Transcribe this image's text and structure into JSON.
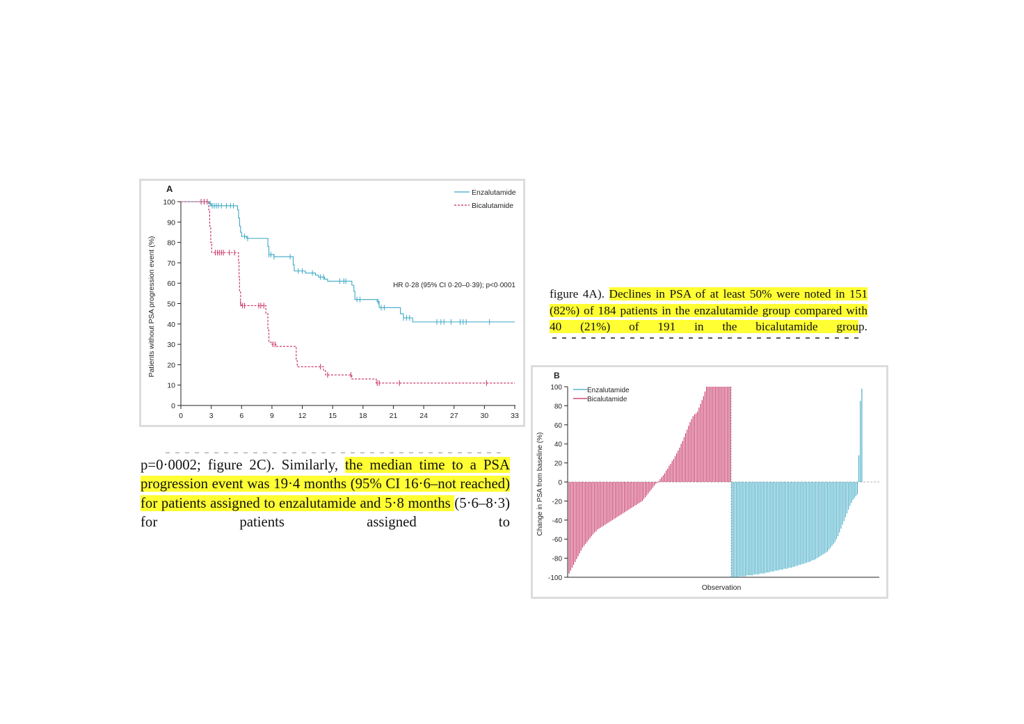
{
  "figure_a": {
    "panel_label": "A",
    "annotation": "HR 0·28 (95% CI 0·20–0·39); p<0·0001",
    "chart_data": {
      "type": "line",
      "title": "",
      "ylabel": "Patients without PSA progression event (%)",
      "xlabel": "",
      "xlim": [
        0,
        33
      ],
      "ylim": [
        0,
        100
      ],
      "xticks": [
        0,
        3,
        6,
        9,
        12,
        15,
        18,
        21,
        24,
        27,
        30,
        33
      ],
      "yticks": [
        0,
        10,
        20,
        30,
        40,
        50,
        60,
        70,
        80,
        90,
        100
      ],
      "legend_position": "top-right",
      "series": [
        {
          "name": "Enzalutamide",
          "color": "#3aa8c4",
          "line_style": "solid",
          "steps": [
            [
              0,
              100
            ],
            [
              2.6,
              100
            ],
            [
              2.8,
              99
            ],
            [
              3.0,
              98
            ],
            [
              5.4,
              98
            ],
            [
              5.6,
              96
            ],
            [
              5.7,
              92
            ],
            [
              5.8,
              88
            ],
            [
              5.9,
              85
            ],
            [
              6.0,
              83
            ],
            [
              6.5,
              82
            ],
            [
              8.4,
              82
            ],
            [
              8.6,
              78
            ],
            [
              8.7,
              74
            ],
            [
              9.2,
              73
            ],
            [
              11.0,
              73
            ],
            [
              11.1,
              69
            ],
            [
              11.2,
              66
            ],
            [
              12.3,
              65
            ],
            [
              13.2,
              65
            ],
            [
              13.3,
              64
            ],
            [
              13.6,
              63
            ],
            [
              14.2,
              62
            ],
            [
              14.5,
              61
            ],
            [
              16.8,
              61
            ],
            [
              16.9,
              59
            ],
            [
              17.1,
              56
            ],
            [
              17.2,
              52
            ],
            [
              19.2,
              52
            ],
            [
              19.4,
              51
            ],
            [
              19.6,
              48
            ],
            [
              21.6,
              48
            ],
            [
              21.7,
              45
            ],
            [
              22.0,
              43
            ],
            [
              22.5,
              43
            ],
            [
              22.9,
              41
            ],
            [
              33,
              41
            ]
          ],
          "censor_times": [
            2.9,
            3.1,
            3.3,
            3.5,
            3.7,
            4.0,
            4.5,
            4.9,
            5.2,
            6.3,
            6.6,
            8.7,
            8.9,
            9.2,
            10.8,
            11.6,
            12.0,
            13.0,
            13.8,
            14.1,
            15.7,
            16.1,
            16.3,
            17.4,
            17.7,
            19.5,
            19.8,
            20.1,
            22.0,
            22.3,
            22.6,
            25.3,
            25.7,
            26.0,
            26.7,
            27.6,
            27.9,
            28.2,
            30.5
          ]
        },
        {
          "name": "Bicalutamide",
          "color": "#c4265a",
          "line_style": "dashed",
          "steps": [
            [
              0,
              100
            ],
            [
              2.6,
              100
            ],
            [
              2.75,
              96
            ],
            [
              2.85,
              88
            ],
            [
              2.95,
              80
            ],
            [
              3.05,
              75
            ],
            [
              5.6,
              75
            ],
            [
              5.7,
              71
            ],
            [
              5.75,
              63
            ],
            [
              5.8,
              56
            ],
            [
              5.9,
              50
            ],
            [
              6.0,
              49
            ],
            [
              8.2,
              49
            ],
            [
              8.4,
              45
            ],
            [
              8.6,
              37
            ],
            [
              8.7,
              31
            ],
            [
              9.0,
              30
            ],
            [
              9.4,
              29
            ],
            [
              11.3,
              29
            ],
            [
              11.4,
              22
            ],
            [
              11.5,
              19
            ],
            [
              14.0,
              19
            ],
            [
              14.1,
              17
            ],
            [
              14.3,
              15
            ],
            [
              16.8,
              15
            ],
            [
              16.9,
              13
            ],
            [
              19.2,
              13
            ],
            [
              19.3,
              11
            ],
            [
              33,
              11
            ]
          ],
          "censor_times": [
            2.0,
            2.3,
            2.6,
            3.4,
            3.6,
            3.8,
            4.0,
            4.2,
            4.8,
            5.3,
            5.9,
            6.1,
            6.3,
            7.7,
            7.9,
            8.2,
            9.1,
            9.3,
            13.8,
            14.5,
            16.8,
            19.4,
            19.6,
            21.6,
            30.2
          ]
        }
      ]
    }
  },
  "figure_b": {
    "panel_label": "B",
    "chart_data": {
      "type": "bar",
      "title": "",
      "xlabel": "Observation",
      "ylabel": "Change in PSA from baseline (%)",
      "ylim": [
        -100,
        100
      ],
      "yticks": [
        -100,
        -80,
        -60,
        -40,
        -20,
        0,
        20,
        40,
        60,
        80,
        100
      ],
      "legend_position": "top-left",
      "series": [
        {
          "name": "Bicalutamide",
          "color": "#c4265a",
          "values": [
            -96,
            -93,
            -90,
            -87,
            -84,
            -81,
            -78,
            -75,
            -72,
            -69,
            -67,
            -65,
            -63,
            -61,
            -59,
            -57,
            -55,
            -53,
            -52,
            -50,
            -49,
            -48,
            -47,
            -46,
            -45,
            -44,
            -43,
            -42,
            -41,
            -40,
            -39,
            -38,
            -37,
            -36,
            -35,
            -34,
            -33,
            -32,
            -31,
            -30,
            -29,
            -28,
            -27,
            -26,
            -25,
            -24,
            -23,
            -22,
            -21,
            -20,
            -18,
            -16,
            -14,
            -12,
            -10,
            -8,
            -6,
            -4,
            -2,
            -1,
            1,
            3,
            5,
            7,
            9,
            12,
            14,
            17,
            19,
            22,
            24,
            27,
            30,
            33,
            36,
            40,
            43,
            47,
            51,
            55,
            59,
            63,
            66,
            69,
            71,
            72,
            74,
            78,
            82,
            86,
            90,
            95,
            100,
            100,
            100,
            100,
            100,
            100,
            100,
            100,
            100,
            100,
            100,
            100,
            100,
            100,
            100,
            100,
            100
          ]
        },
        {
          "name": "Enzalutamide",
          "color": "#3aa8c4",
          "values": [
            -100,
            -100,
            -100,
            -100,
            -100,
            -99,
            -99,
            -99,
            -99,
            -99,
            -98,
            -98,
            -98,
            -98,
            -98,
            -97,
            -97,
            -97,
            -97,
            -96,
            -96,
            -96,
            -96,
            -95,
            -95,
            -95,
            -94,
            -94,
            -94,
            -93,
            -93,
            -93,
            -92,
            -92,
            -92,
            -91,
            -91,
            -91,
            -90,
            -90,
            -90,
            -89,
            -89,
            -88,
            -88,
            -87,
            -87,
            -86,
            -86,
            -85,
            -85,
            -84,
            -84,
            -83,
            -82,
            -82,
            -81,
            -80,
            -79,
            -78,
            -77,
            -76,
            -75,
            -74,
            -73,
            -71,
            -69,
            -67,
            -65,
            -63,
            -60,
            -57,
            -53,
            -49,
            -45,
            -41,
            -37,
            -33,
            -29,
            -25,
            -22,
            -19,
            -17,
            -15,
            -13,
            28,
            85,
            98
          ]
        }
      ]
    }
  },
  "text_right": {
    "plain1": "figure 4A). ",
    "hl1": "Declines in PSA of at least 50% were noted in 151 (82%) of 184 patients in the enzalutamide group compared with 40 (21%) of 191 in the bicalutamide grou",
    "plain2": "p."
  },
  "text_left": {
    "plain1": "p=0·0002; figure 2C). Similarly, ",
    "hl1": "the median time to a PSA progression event was 19·4 months (95% CI 16·6–not reached) for patients assigned to enzalutamide and 5·8 months ",
    "plain2": "(5·6–8·3) for patients assigned to"
  }
}
